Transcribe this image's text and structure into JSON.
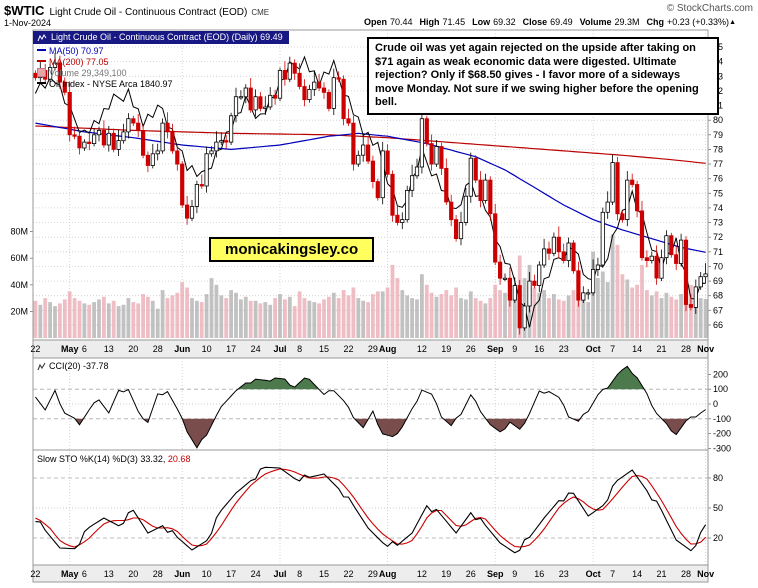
{
  "header": {
    "symbol": "$WTIC",
    "title": "Light Crude Oil - Continuous Contract (EOD)",
    "exchange": "CME",
    "copyright": "© StockCharts.com",
    "date": "1-Nov-2024",
    "quote": {
      "open_label": "Open",
      "open": "70.44",
      "high_label": "High",
      "high": "71.45",
      "low_label": "Low",
      "low": "69.32",
      "close_label": "Close",
      "close": "69.49",
      "volume_label": "Volume",
      "volume": "29.3M",
      "chg_label": "Chg",
      "chg": "+0.23 (+0.33%)",
      "arrow": "▲"
    }
  },
  "legend": {
    "series": "Light Crude Oil - Continuous Contract (EOD) (Daily) 69.49",
    "ma50": "MA(50) 70.97",
    "ma200": "MA(200) 77.05",
    "volume": "Volume 29,349,100",
    "oil_index": "Oil Index - NYSE Arca 1840.97"
  },
  "annotation": {
    "text": "Crude oil was yet again rejected on the upside after taking on $71 again as weak economic data were digested.  Ultimate rejection? Only if $68.50 gives - I favor more of a sideways move Monday. Not sure if we swing higher before the opening bell."
  },
  "watermark": {
    "text": "monicakingsley.co"
  },
  "indicators": {
    "cci_label": "CCI(20) -37.78",
    "sto_label": "Slow STO %K(14) %D(3)",
    "sto_k": "33.32,",
    "sto_d": "20.68"
  },
  "chart_data": {
    "type": "candlestick",
    "title": "Light Crude Oil - Continuous Contract (EOD) (Daily)",
    "last_close": 69.49,
    "first_open": 83.2,
    "price_axis": {
      "min": 66,
      "max": 85,
      "step": 1
    },
    "volume_axis": [
      {
        "label": "20M",
        "value": 20
      },
      {
        "label": "40M",
        "value": 40
      },
      {
        "label": "60M",
        "value": 60
      },
      {
        "label": "80M",
        "value": 80
      }
    ],
    "x_ticks": [
      {
        "label": "22",
        "index": 0
      },
      {
        "label": "May",
        "index": 7,
        "bold": true
      },
      {
        "label": "6",
        "index": 10
      },
      {
        "label": "13",
        "index": 15
      },
      {
        "label": "20",
        "index": 20
      },
      {
        "label": "28",
        "index": 25
      },
      {
        "label": "Jun",
        "index": 30,
        "bold": true
      },
      {
        "label": "10",
        "index": 35
      },
      {
        "label": "17",
        "index": 40
      },
      {
        "label": "24",
        "index": 45
      },
      {
        "label": "Jul",
        "index": 50,
        "bold": true
      },
      {
        "label": "8",
        "index": 54
      },
      {
        "label": "15",
        "index": 59
      },
      {
        "label": "22",
        "index": 64
      },
      {
        "label": "29",
        "index": 69
      },
      {
        "label": "Aug",
        "index": 72,
        "bold": true
      },
      {
        "label": "12",
        "index": 79
      },
      {
        "label": "19",
        "index": 84
      },
      {
        "label": "26",
        "index": 89
      },
      {
        "label": "Sep",
        "index": 94,
        "bold": true
      },
      {
        "label": "9",
        "index": 98
      },
      {
        "label": "16",
        "index": 103
      },
      {
        "label": "23",
        "index": 108
      },
      {
        "label": "Oct",
        "index": 114,
        "bold": true
      },
      {
        "label": "7",
        "index": 118
      },
      {
        "label": "14",
        "index": 123
      },
      {
        "label": "21",
        "index": 128
      },
      {
        "label": "28",
        "index": 133
      },
      {
        "label": "Nov",
        "index": 137,
        "bold": true
      }
    ],
    "month_gridline_indices": [
      7,
      30,
      50,
      72,
      94,
      114,
      137
    ],
    "closes": [
      82.9,
      83.4,
      82.8,
      83.6,
      83.9,
      82.6,
      81.9,
      79.0,
      78.9,
      78.1,
      78.5,
      78.4,
      79.0,
      79.3,
      78.3,
      79.1,
      78.0,
      78.6,
      79.2,
      80.1,
      79.8,
      79.3,
      77.6,
      76.9,
      77.7,
      77.9,
      79.8,
      79.2,
      77.9,
      77.0,
      74.2,
      73.3,
      74.1,
      75.6,
      75.5,
      77.7,
      77.9,
      78.5,
      78.6,
      78.5,
      80.3,
      81.6,
      81.6,
      82.2,
      80.7,
      81.6,
      80.8,
      80.9,
      81.7,
      81.5,
      83.4,
      82.8,
      83.9,
      83.2,
      82.3,
      81.4,
      82.1,
      82.6,
      82.2,
      81.9,
      80.8,
      82.9,
      82.8,
      80.1,
      79.8,
      77.0,
      77.6,
      78.3,
      77.2,
      75.8,
      74.7,
      77.9,
      76.3,
      73.5,
      73.0,
      73.2,
      75.2,
      76.2,
      76.8,
      80.1,
      78.4,
      77.0,
      78.2,
      76.7,
      74.4,
      73.2,
      71.9,
      73.0,
      74.8,
      77.4,
      75.9,
      74.5,
      75.9,
      73.6,
      70.3,
      69.2,
      69.2,
      67.7,
      68.7,
      65.8,
      67.3,
      69.0,
      68.7,
      70.1,
      71.2,
      70.9,
      72.0,
      71.0,
      70.4,
      71.6,
      69.7,
      67.7,
      68.2,
      68.2,
      69.8,
      70.1,
      73.7,
      74.4,
      77.1,
      73.6,
      73.2,
      75.9,
      75.6,
      73.8,
      70.6,
      70.4,
      70.7,
      69.2,
      70.6,
      72.1,
      70.8,
      70.2,
      71.8,
      67.4,
      67.2,
      68.6,
      69.3,
      69.49
    ],
    "volumes_m": [
      28,
      25,
      30,
      27,
      24,
      26,
      29,
      35,
      30,
      28,
      26,
      25,
      27,
      29,
      31,
      26,
      28,
      24,
      25,
      30,
      27,
      26,
      33,
      31,
      28,
      22,
      36,
      30,
      32,
      34,
      42,
      38,
      30,
      28,
      27,
      33,
      45,
      40,
      32,
      30,
      36,
      34,
      29,
      31,
      28,
      28,
      26,
      27,
      25,
      30,
      33,
      29,
      31,
      24,
      35,
      30,
      28,
      27,
      26,
      29,
      31,
      34,
      30,
      36,
      32,
      38,
      30,
      28,
      27,
      33,
      35,
      35,
      38,
      55,
      45,
      36,
      32,
      30,
      29,
      48,
      40,
      34,
      31,
      33,
      36,
      32,
      38,
      30,
      29,
      35,
      30,
      28,
      26,
      30,
      40,
      36,
      34,
      38,
      33,
      62,
      45,
      55,
      38,
      34,
      36,
      30,
      33,
      29,
      28,
      32,
      36,
      38,
      30,
      27,
      65,
      45,
      50,
      42,
      78,
      70,
      48,
      44,
      38,
      40,
      55,
      36,
      32,
      35,
      30,
      34,
      31,
      29,
      33,
      48,
      40,
      36,
      30,
      29.3
    ],
    "ma50_keypoints": [
      [
        0,
        79.8
      ],
      [
        10,
        79.2
      ],
      [
        20,
        78.8
      ],
      [
        30,
        78.3
      ],
      [
        40,
        78.0
      ],
      [
        50,
        78.3
      ],
      [
        60,
        78.9
      ],
      [
        66,
        79.1
      ],
      [
        72,
        78.9
      ],
      [
        80,
        78.4
      ],
      [
        90,
        77.5
      ],
      [
        96,
        76.6
      ],
      [
        102,
        75.4
      ],
      [
        108,
        74.2
      ],
      [
        114,
        73.2
      ],
      [
        120,
        72.5
      ],
      [
        126,
        71.9
      ],
      [
        132,
        71.3
      ],
      [
        137,
        70.97
      ]
    ],
    "ma200_keypoints": [
      [
        0,
        79.6
      ],
      [
        20,
        79.3
      ],
      [
        40,
        79.1
      ],
      [
        60,
        79.0
      ],
      [
        72,
        78.8
      ],
      [
        84,
        78.5
      ],
      [
        96,
        78.2
      ],
      [
        108,
        77.9
      ],
      [
        120,
        77.6
      ],
      [
        130,
        77.3
      ],
      [
        137,
        77.05
      ]
    ],
    "oil_index_keypoints": [
      [
        0,
        82.3
      ],
      [
        4,
        82.8
      ],
      [
        7,
        80.5
      ],
      [
        10,
        79.2
      ],
      [
        13,
        80.0
      ],
      [
        16,
        81.3
      ],
      [
        19,
        82.0
      ],
      [
        22,
        79.8
      ],
      [
        26,
        80.8
      ],
      [
        29,
        78.5
      ],
      [
        31,
        76.8
      ],
      [
        34,
        76.0
      ],
      [
        37,
        77.8
      ],
      [
        40,
        79.5
      ],
      [
        43,
        81.2
      ],
      [
        46,
        80.3
      ],
      [
        49,
        81.8
      ],
      [
        52,
        83.5
      ],
      [
        55,
        84.2
      ],
      [
        58,
        82.6
      ],
      [
        61,
        83.6
      ],
      [
        64,
        81.5
      ],
      [
        67,
        79.2
      ],
      [
        70,
        78.0
      ],
      [
        73,
        75.2
      ],
      [
        75,
        73.8
      ],
      [
        79,
        77.6
      ],
      [
        82,
        76.2
      ],
      [
        86,
        73.6
      ],
      [
        89,
        75.8
      ],
      [
        92,
        74.2
      ],
      [
        95,
        71.0
      ],
      [
        98,
        69.0
      ],
      [
        101,
        66.2
      ],
      [
        104,
        68.8
      ],
      [
        107,
        70.6
      ],
      [
        110,
        71.5
      ],
      [
        113,
        68.8
      ],
      [
        116,
        70.0
      ],
      [
        119,
        73.0
      ],
      [
        122,
        74.8
      ],
      [
        125,
        72.3
      ],
      [
        128,
        70.2
      ],
      [
        131,
        71.6
      ],
      [
        134,
        67.8
      ],
      [
        137,
        69.2
      ]
    ],
    "oil_index_last": 1840.97,
    "ma50_last": 70.97,
    "ma200_last": 77.05,
    "cci": {
      "label": "CCI(20)",
      "last": -37.78,
      "axis": [
        200,
        100,
        0,
        -100,
        -200,
        -300
      ],
      "keypoints": [
        [
          0,
          60
        ],
        [
          2,
          -40
        ],
        [
          4,
          80
        ],
        [
          6,
          -60
        ],
        [
          9,
          -130
        ],
        [
          11,
          -40
        ],
        [
          13,
          40
        ],
        [
          15,
          -60
        ],
        [
          17,
          80
        ],
        [
          19,
          100
        ],
        [
          21,
          -60
        ],
        [
          23,
          -120
        ],
        [
          25,
          60
        ],
        [
          27,
          90
        ],
        [
          29,
          -40
        ],
        [
          31,
          -180
        ],
        [
          33,
          -300
        ],
        [
          35,
          -200
        ],
        [
          37,
          -80
        ],
        [
          39,
          30
        ],
        [
          41,
          90
        ],
        [
          43,
          130
        ],
        [
          45,
          170
        ],
        [
          47,
          150
        ],
        [
          49,
          180
        ],
        [
          51,
          160
        ],
        [
          53,
          120
        ],
        [
          55,
          170
        ],
        [
          57,
          140
        ],
        [
          59,
          60
        ],
        [
          61,
          100
        ],
        [
          63,
          20
        ],
        [
          65,
          -80
        ],
        [
          67,
          -160
        ],
        [
          69,
          -60
        ],
        [
          71,
          -200
        ],
        [
          73,
          -230
        ],
        [
          75,
          -150
        ],
        [
          77,
          -40
        ],
        [
          79,
          100
        ],
        [
          81,
          60
        ],
        [
          83,
          -80
        ],
        [
          85,
          -150
        ],
        [
          87,
          -60
        ],
        [
          89,
          60
        ],
        [
          91,
          -40
        ],
        [
          93,
          -140
        ],
        [
          95,
          -200
        ],
        [
          97,
          -120
        ],
        [
          99,
          -180
        ],
        [
          101,
          -60
        ],
        [
          103,
          80
        ],
        [
          105,
          90
        ],
        [
          107,
          40
        ],
        [
          109,
          -80
        ],
        [
          111,
          -120
        ],
        [
          113,
          -40
        ],
        [
          115,
          60
        ],
        [
          117,
          120
        ],
        [
          119,
          200
        ],
        [
          121,
          250
        ],
        [
          123,
          180
        ],
        [
          125,
          60
        ],
        [
          127,
          -60
        ],
        [
          129,
          -140
        ],
        [
          131,
          -200
        ],
        [
          133,
          -120
        ],
        [
          135,
          -80
        ],
        [
          137,
          -37.78
        ]
      ]
    },
    "sto": {
      "label": "Slow STO %K(14) %D(3)",
      "k_last": 33.32,
      "d_last": 20.68,
      "axis": [
        80,
        50,
        20
      ],
      "keypoints": [
        [
          0,
          40
        ],
        [
          2,
          25
        ],
        [
          5,
          10
        ],
        [
          8,
          12
        ],
        [
          11,
          28
        ],
        [
          14,
          40
        ],
        [
          17,
          35
        ],
        [
          20,
          45
        ],
        [
          23,
          25
        ],
        [
          26,
          35
        ],
        [
          29,
          18
        ],
        [
          32,
          8
        ],
        [
          35,
          20
        ],
        [
          38,
          45
        ],
        [
          41,
          65
        ],
        [
          44,
          80
        ],
        [
          47,
          88
        ],
        [
          50,
          90
        ],
        [
          53,
          82
        ],
        [
          56,
          78
        ],
        [
          59,
          84
        ],
        [
          62,
          72
        ],
        [
          65,
          50
        ],
        [
          68,
          30
        ],
        [
          71,
          18
        ],
        [
          74,
          10
        ],
        [
          77,
          25
        ],
        [
          80,
          55
        ],
        [
          83,
          40
        ],
        [
          86,
          25
        ],
        [
          89,
          48
        ],
        [
          92,
          30
        ],
        [
          95,
          15
        ],
        [
          98,
          8
        ],
        [
          101,
          18
        ],
        [
          104,
          40
        ],
        [
          107,
          60
        ],
        [
          110,
          62
        ],
        [
          113,
          42
        ],
        [
          116,
          55
        ],
        [
          119,
          75
        ],
        [
          122,
          88
        ],
        [
          125,
          70
        ],
        [
          128,
          45
        ],
        [
          131,
          18
        ],
        [
          134,
          10
        ],
        [
          136,
          22
        ],
        [
          137,
          33.32
        ]
      ]
    },
    "colors": {
      "up": "#000000",
      "down": "#cc0000",
      "ma50": "#0000bb",
      "ma200": "#bb0000",
      "volume_up": "#a8a8a8",
      "volume_down": "#e8a3ab",
      "cci_pos_fill": "#3a6b3a",
      "cci_neg_fill": "#6b3a3a",
      "sto_k": "#000000",
      "sto_d": "#cc0000",
      "legend_bg": "#181884",
      "watermark_bg": "#ffff5e"
    }
  }
}
